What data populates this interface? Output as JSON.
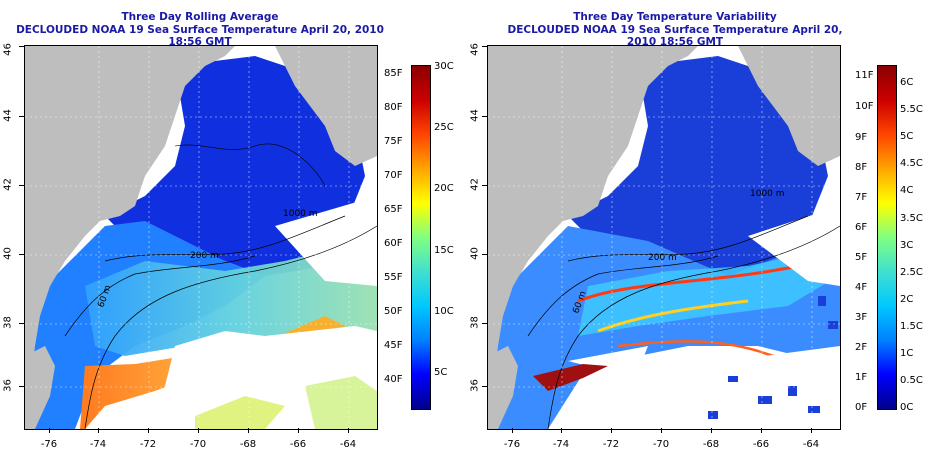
{
  "left_panel": {
    "title_line1": "Three Day Rolling Average",
    "title_line2": "DECLOUDED NOAA 19 Sea Surface Temperature April 20, 2010 18:56 GMT",
    "lat_ticks": [
      "36",
      "38",
      "40",
      "42",
      "44",
      "46"
    ],
    "lon_ticks": [
      "-76",
      "-74",
      "-72",
      "-70",
      "-68",
      "-66",
      "-64"
    ],
    "isobath_labels": [
      "1000 m",
      "200 m",
      "60 m"
    ],
    "colorbar": {
      "fahrenheit_labels": [
        "40F",
        "45F",
        "50F",
        "55F",
        "60F",
        "65F",
        "70F",
        "75F",
        "80F",
        "85F"
      ],
      "celsius_labels": [
        "5C",
        "10C",
        "15C",
        "20C",
        "25C",
        "30C"
      ],
      "colors": [
        "#00008b",
        "#0000ff",
        "#0080ff",
        "#00c8ff",
        "#40e0d0",
        "#80ff80",
        "#ffff00",
        "#ffa500",
        "#ff4500",
        "#cc0000",
        "#8b0000"
      ]
    }
  },
  "right_panel": {
    "title_line1": "Three Day Temperature Variability",
    "title_line2": "DECLOUDED NOAA 19 Sea Surface Temperature April 20, 2010 18:56 GMT",
    "lat_ticks": [
      "36",
      "38",
      "40",
      "42",
      "44",
      "46"
    ],
    "lon_ticks": [
      "-76",
      "-74",
      "-72",
      "-70",
      "-68",
      "-66",
      "-64"
    ],
    "isobath_labels": [
      "1000 m",
      "200 m",
      "60 m"
    ],
    "colorbar": {
      "fahrenheit_labels": [
        "0F",
        "1F",
        "2F",
        "3F",
        "4F",
        "5F",
        "6F",
        "7F",
        "8F",
        "9F",
        "10F",
        "11F"
      ],
      "celsius_labels": [
        "0C",
        "0.5C",
        "1C",
        "1.5C",
        "2C",
        "2.5C",
        "3C",
        "3.5C",
        "4C",
        "4.5C",
        "5C",
        "5.5C",
        "6C"
      ],
      "colors": [
        "#00008b",
        "#0000ff",
        "#0080ff",
        "#00c8ff",
        "#40e0d0",
        "#80ff80",
        "#ffff00",
        "#ffa500",
        "#ff4500",
        "#cc0000",
        "#8b0000"
      ]
    }
  },
  "colors": {
    "land": "#bebebe",
    "title": "#1a1aa6",
    "coast_line": "#000000"
  }
}
